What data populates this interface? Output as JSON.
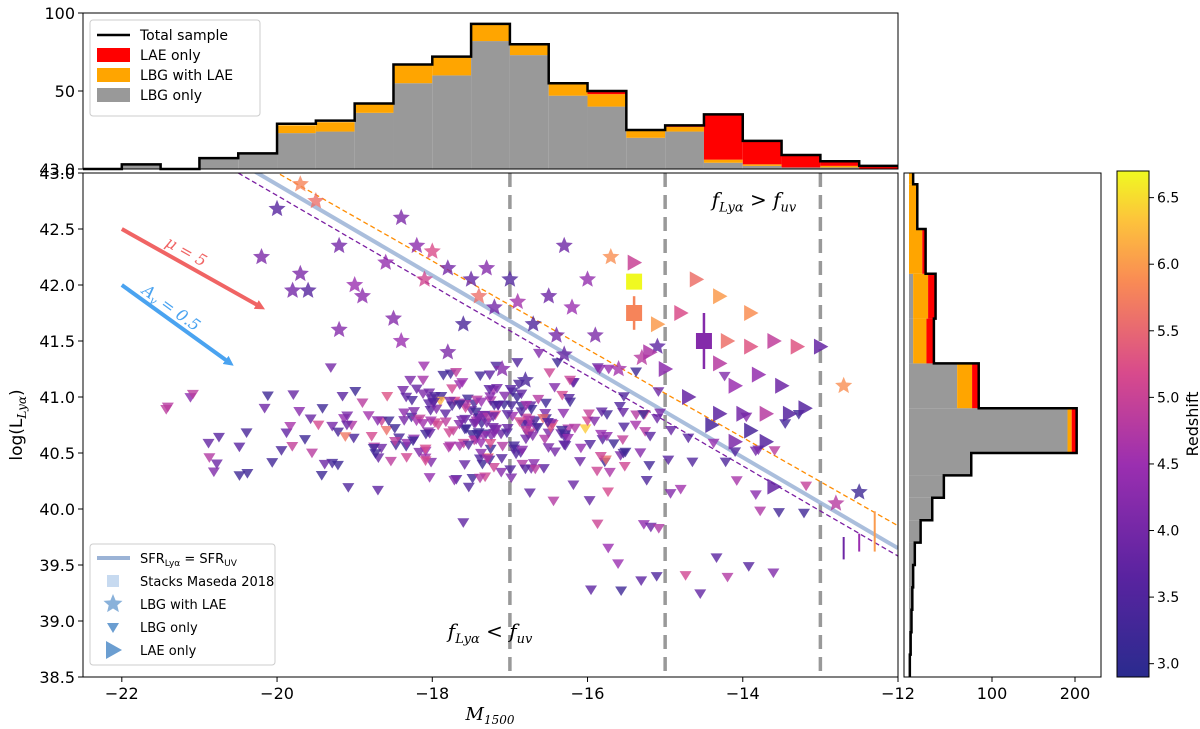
{
  "chart_data": {
    "type": "scatter",
    "main": {
      "xlabel": "M",
      "xlabel_sub": "1500",
      "ylabel": "log(L",
      "ylabel_sub": "Lyα",
      "ylabel_end": ")",
      "xlim": [
        -22.5,
        -12
      ],
      "ylim": [
        38.5,
        43.0
      ],
      "xticks": [
        -22,
        -20,
        -18,
        -16,
        -14,
        -12
      ],
      "xtick_labels": [
        "−22",
        "−20",
        "−18",
        "−16",
        "−14",
        "−12"
      ],
      "yticks": [
        38.5,
        39.0,
        39.5,
        40.0,
        40.5,
        41.0,
        41.5,
        42.0,
        42.5,
        43.0
      ],
      "ytick_labels": [
        "38.5",
        "39.0",
        "39.5",
        "40.0",
        "40.5",
        "41.0",
        "41.5",
        "42.0",
        "42.5",
        "43.0"
      ],
      "vlines": [
        -17,
        -15,
        -13
      ],
      "region_labels": [
        {
          "text": "f",
          "sub": "Lyα",
          "op": " > f",
          "sub2": "uv",
          "x": -14.4,
          "y": 42.7
        },
        {
          "text": "f",
          "sub": "Lyα",
          "op": " < f",
          "sub2": "uv",
          "x": -17.8,
          "y": 38.85
        }
      ],
      "arrows": [
        {
          "label": "μ = 5",
          "from": [
            -22,
            42.5
          ],
          "to": [
            -20.2,
            41.8
          ],
          "color": "#f06464"
        },
        {
          "label": "A",
          "label_sub": "v",
          "label_end": " = 0.5",
          "from": [
            -22,
            42.0
          ],
          "to": [
            -20.6,
            41.3
          ],
          "color": "#4aa3f0"
        }
      ],
      "sfr_lines": [
        {
          "name": "SFR_Lyα = SFR_UV",
          "x": [
            -20.5,
            -12
          ],
          "y": [
            43.1,
            39.65
          ],
          "color": "#9bb3d6"
        },
        {
          "name": "dashed orange",
          "x": [
            -20.5,
            -12
          ],
          "y": [
            43.2,
            39.85
          ],
          "color": "#ff8c00"
        },
        {
          "name": "dashed purple",
          "x": [
            -20.5,
            -12
          ],
          "y": [
            43.0,
            39.58
          ],
          "color": "#7b1fa2"
        }
      ],
      "stacks": [
        {
          "x": -15.4,
          "y": 42.03,
          "z": 6.7
        },
        {
          "x": -15.4,
          "y": 41.75,
          "z": 5.8,
          "err": 0.15
        },
        {
          "x": -14.5,
          "y": 41.5,
          "z": 4.2,
          "err": 0.25
        }
      ],
      "lbg_with_lae": [
        [
          -19.7,
          42.9,
          5.8
        ],
        [
          -19.5,
          42.75,
          5.6
        ],
        [
          -20.0,
          42.68,
          3.6
        ],
        [
          -19.2,
          42.35,
          4.0
        ],
        [
          -18.4,
          42.6,
          4.1
        ],
        [
          -18.2,
          42.35,
          4.3
        ],
        [
          -18.6,
          42.2,
          4.4
        ],
        [
          -18.0,
          42.3,
          5.2
        ],
        [
          -17.8,
          42.15,
          4.0
        ],
        [
          -17.5,
          42.05,
          3.8
        ],
        [
          -17.3,
          42.15,
          4.2
        ],
        [
          -17.0,
          42.05,
          3.5
        ],
        [
          -16.9,
          41.85,
          4.6
        ],
        [
          -16.5,
          41.9,
          3.9
        ],
        [
          -16.3,
          42.35,
          3.9
        ],
        [
          -16.2,
          41.8,
          4.5
        ],
        [
          -15.7,
          42.25,
          5.9
        ],
        [
          -15.1,
          41.45,
          3.7
        ],
        [
          -15.3,
          41.35,
          4.8
        ],
        [
          -15.9,
          41.55,
          4.1
        ],
        [
          -16.0,
          42.05,
          4.4
        ],
        [
          -17.6,
          41.65,
          3.4
        ],
        [
          -18.5,
          41.7,
          4.2
        ],
        [
          -18.4,
          41.5,
          4.5
        ],
        [
          -19.2,
          41.6,
          4.2
        ],
        [
          -19.6,
          41.95,
          3.6
        ],
        [
          -19.7,
          42.1,
          4.1
        ],
        [
          -19.0,
          42.0,
          4.5
        ],
        [
          -18.9,
          41.9,
          4.3
        ],
        [
          -18.1,
          42.05,
          5.1
        ],
        [
          -17.2,
          41.8,
          4.0
        ],
        [
          -17.8,
          41.4,
          4.1
        ],
        [
          -16.7,
          41.65,
          3.5
        ],
        [
          -16.4,
          41.55,
          4.0
        ],
        [
          -15.6,
          41.25,
          4.6
        ],
        [
          -12.7,
          41.1,
          5.9
        ],
        [
          -12.5,
          40.15,
          3.2
        ],
        [
          -12.8,
          40.05,
          4.8
        ],
        [
          -16.8,
          41.15,
          3.4
        ],
        [
          -17.1,
          41.25,
          4.2
        ],
        [
          -19.8,
          41.95,
          4.0
        ],
        [
          -20.2,
          42.25,
          4.1
        ],
        [
          -16.3,
          41.38,
          3.8
        ],
        [
          -17.4,
          41.9,
          5.6
        ]
      ],
      "lae_only": [
        [
          -15.1,
          41.65,
          6.0
        ],
        [
          -14.8,
          41.75,
          5.2
        ],
        [
          -14.6,
          42.05,
          5.6
        ],
        [
          -14.3,
          41.9,
          6.0
        ],
        [
          -13.9,
          41.75,
          5.9
        ],
        [
          -14.2,
          41.5,
          5.6
        ],
        [
          -13.9,
          41.45,
          5.3
        ],
        [
          -13.6,
          41.5,
          4.9
        ],
        [
          -13.3,
          41.45,
          5.3
        ],
        [
          -13.0,
          41.45,
          3.8
        ],
        [
          -15.0,
          41.25,
          4.3
        ],
        [
          -14.7,
          41.0,
          3.8
        ],
        [
          -14.3,
          40.85,
          3.7
        ],
        [
          -14.0,
          40.85,
          4.0
        ],
        [
          -14.1,
          41.1,
          4.5
        ],
        [
          -13.8,
          41.2,
          4.4
        ],
        [
          -13.7,
          40.85,
          4.8
        ],
        [
          -13.4,
          40.85,
          3.6
        ],
        [
          -13.2,
          40.9,
          3.6
        ],
        [
          -14.4,
          40.75,
          3.4
        ],
        [
          -13.7,
          40.6,
          3.6
        ],
        [
          -13.6,
          40.2,
          3.8
        ],
        [
          -13.9,
          40.7,
          3.4
        ],
        [
          -15.4,
          42.2,
          5.0
        ],
        [
          -14.1,
          40.6,
          4.1
        ],
        [
          -14.3,
          41.3,
          4.8
        ],
        [
          -13.5,
          41.1,
          3.9
        ],
        [
          -15.2,
          41.4,
          4.7
        ]
      ],
      "lbg_only_seed": 17,
      "lbg_only_count": 360,
      "errbars": [
        {
          "x": -12.3,
          "y": 39.8,
          "z": 6.0,
          "err": 0.18
        },
        {
          "x": -12.7,
          "y": 39.65,
          "z": 3.9,
          "err": 0.1
        },
        {
          "x": -12.5,
          "y": 39.7,
          "z": 4.5,
          "err": 0.08
        }
      ],
      "legend": [
        {
          "label": "SFR",
          "sub": "Lyα",
          "mid": " = SFR",
          "sub2": "UV",
          "kind": "line"
        },
        {
          "label": "Stacks Maseda 2018",
          "kind": "square"
        },
        {
          "label": "LBG with LAE",
          "kind": "star"
        },
        {
          "label": "LBG only",
          "kind": "tri-down"
        },
        {
          "label": "LAE only",
          "kind": "tri-right"
        }
      ]
    },
    "top_hist": {
      "bins": [
        -22.5,
        -22,
        -21.5,
        -21,
        -20.5,
        -20,
        -19.5,
        -19,
        -18.5,
        -18,
        -17.5,
        -17,
        -16.5,
        -16,
        -15.5,
        -15,
        -14.5,
        -14,
        -13.5,
        -13,
        -12.5,
        -12
      ],
      "total": [
        0,
        3,
        0,
        7,
        10,
        29,
        31,
        42,
        67,
        72,
        93,
        80,
        55,
        50,
        25,
        28,
        35,
        18,
        9,
        5,
        2
      ],
      "lbg_only": [
        0,
        3,
        0,
        7,
        10,
        23,
        24,
        36,
        55,
        60,
        82,
        73,
        47,
        40,
        20,
        24,
        4,
        2,
        1,
        1,
        0
      ],
      "lbg_with_lae": [
        0,
        0,
        0,
        0,
        0,
        5,
        6,
        6,
        12,
        12,
        11,
        7,
        8,
        8,
        5,
        3,
        2,
        1,
        0,
        1,
        0
      ],
      "lae_only": [
        0,
        0,
        0,
        0,
        0,
        0,
        0,
        0,
        0,
        0,
        0,
        0,
        0,
        2,
        0,
        1,
        29,
        15,
        8,
        3,
        2
      ],
      "yticks": [
        43.0,
        50,
        100
      ],
      "ytick_labels": [
        "43.0",
        "50",
        "100"
      ],
      "legend": [
        {
          "label": "Total sample",
          "color": "#000000"
        },
        {
          "label": "LAE only",
          "color": "#ff0000"
        },
        {
          "label": "LBG with LAE",
          "color": "#ffa500"
        },
        {
          "label": "LBG only",
          "color": "#999999"
        }
      ]
    },
    "right_hist": {
      "xticks": [
        100,
        200
      ],
      "xtick_labels": [
        "100",
        "200"
      ],
      "bins": [
        38.5,
        38.7,
        38.9,
        39.1,
        39.3,
        39.5,
        39.7,
        39.9,
        40.1,
        40.3,
        40.5,
        40.9,
        41.3,
        41.7,
        42.1,
        42.5,
        42.9,
        43.0
      ],
      "total": [
        1,
        2,
        3,
        4,
        5,
        7,
        14,
        28,
        42,
        75,
        202,
        84,
        30,
        32,
        20,
        10,
        5
      ],
      "lbg_only": [
        1,
        2,
        3,
        4,
        5,
        7,
        14,
        28,
        42,
        75,
        191,
        58,
        5,
        5,
        0,
        0,
        0
      ],
      "lbg_with_lae": [
        0,
        0,
        0,
        0,
        0,
        0,
        0,
        0,
        0,
        0,
        5,
        18,
        16,
        18,
        16,
        9,
        5
      ],
      "lae_only": [
        0,
        0,
        0,
        0,
        0,
        0,
        0,
        0,
        0,
        0,
        6,
        8,
        9,
        9,
        4,
        1,
        0
      ]
    },
    "colorbar": {
      "label": "Redshift",
      "min": 2.9,
      "max": 6.7,
      "ticks": [
        3.0,
        3.5,
        4.0,
        4.5,
        5.0,
        5.5,
        6.0,
        6.5
      ],
      "tick_labels": [
        "3.0",
        "3.5",
        "4.0",
        "4.5",
        "5.0",
        "5.5",
        "6.0",
        "6.5"
      ]
    },
    "colors": {
      "total": "#000000",
      "lae_only": "#ff0000",
      "lbg_with_lae": "#ffa500",
      "lbg_only": "#999999",
      "vline": "#999999"
    }
  }
}
